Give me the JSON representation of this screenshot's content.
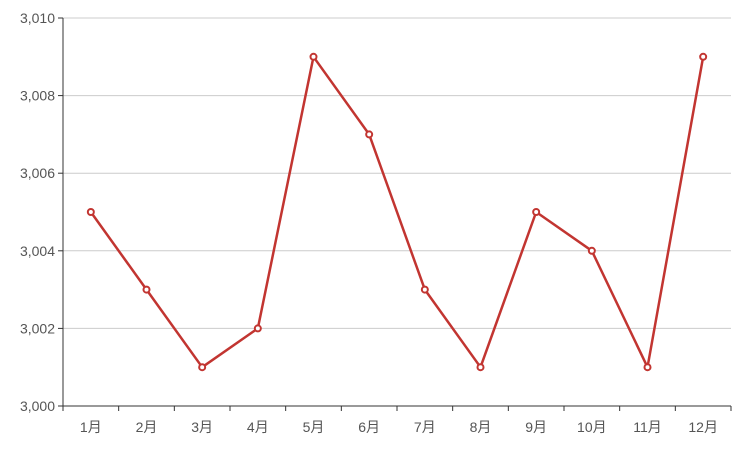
{
  "chart_data": {
    "type": "line",
    "categories": [
      "1月",
      "2月",
      "3月",
      "4月",
      "5月",
      "6月",
      "7月",
      "8月",
      "9月",
      "10月",
      "11月",
      "12月"
    ],
    "series": [
      {
        "values": [
          3005,
          3003,
          3001,
          3002,
          3009,
          3007,
          3003,
          3001,
          3005,
          3004,
          3001,
          3009
        ],
        "color": "#c23531"
      }
    ],
    "y_ticks": [
      "3,000",
      "3,002",
      "3,004",
      "3,006",
      "3,008",
      "3,010"
    ],
    "ylim": [
      3000,
      3010
    ],
    "grid": true,
    "axis_color": "#333333",
    "grid_color": "#cccccc"
  }
}
